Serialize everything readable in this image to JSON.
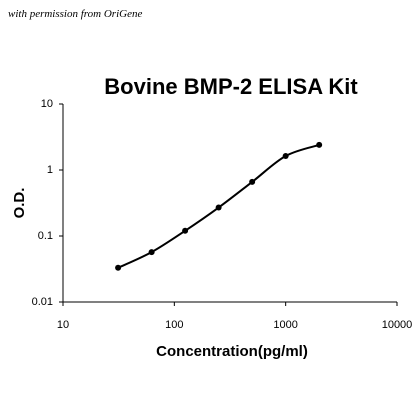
{
  "note_text": "with permission from OriGene",
  "chart_data": {
    "type": "line",
    "title": "Bovine BMP-2 ELISA Kit",
    "x_label": "Concentration(pg/ml)",
    "y_label": "O.D.",
    "x": [
      31.25,
      62.5,
      125,
      250,
      500,
      1000,
      2000
    ],
    "values": [
      0.033,
      0.057,
      0.12,
      0.27,
      0.66,
      1.63,
      2.4
    ],
    "color": "#000000",
    "xlim": [
      10,
      10000
    ],
    "xticks": [
      10,
      100,
      1000,
      10000
    ],
    "ylim": [
      0.01,
      10
    ],
    "yticks": [
      0.01,
      0.1,
      1,
      10
    ],
    "xscale": "log",
    "yscale": "log",
    "grid": false
  }
}
